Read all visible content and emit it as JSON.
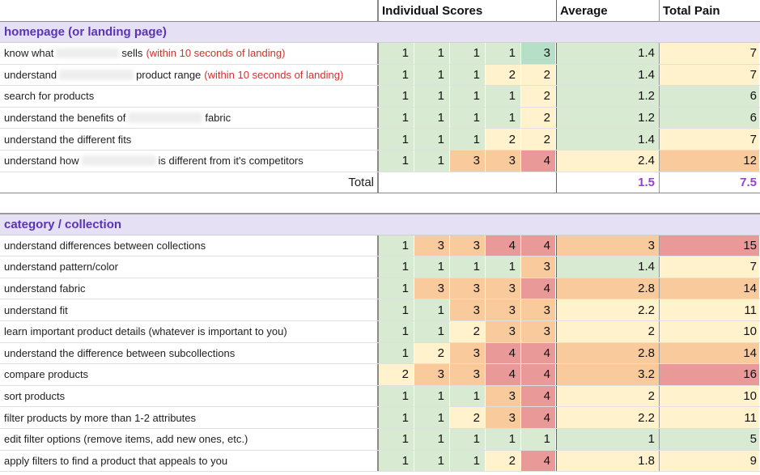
{
  "header": {
    "scores_label": "Individual Scores",
    "average_label": "Average",
    "total_pain_label": "Total Pain"
  },
  "sections": [
    {
      "title": "homepage (or landing page)",
      "rows": [
        {
          "pre": "know what",
          "redacted": true,
          "post": "sells",
          "highlight": "(within 10 seconds of landing)",
          "scores": [
            1,
            1,
            1,
            1,
            3
          ],
          "average": "1.4",
          "total": "7"
        },
        {
          "pre": "understand",
          "redacted": true,
          "post": "product range",
          "highlight": "(within 10 seconds of landing)",
          "scores": [
            1,
            1,
            1,
            2,
            2
          ],
          "average": "1.4",
          "total": "7"
        },
        {
          "pre": "search for products",
          "scores": [
            1,
            1,
            1,
            1,
            2
          ],
          "average": "1.2",
          "total": "6"
        },
        {
          "pre": "understand the benefits of",
          "redacted": true,
          "post": "fabric",
          "scores": [
            1,
            1,
            1,
            1,
            2
          ],
          "average": "1.2",
          "total": "6"
        },
        {
          "pre": "understand the different fits",
          "scores": [
            1,
            1,
            1,
            2,
            2
          ],
          "average": "1.4",
          "total": "7"
        },
        {
          "pre": "understand how",
          "redacted": true,
          "post": "is different from it's competitors",
          "scores": [
            1,
            1,
            3,
            3,
            4
          ],
          "average": "2.4",
          "total": "12"
        }
      ],
      "total": {
        "label": "Total",
        "average": "1.5",
        "total_pain": "7.5"
      }
    },
    {
      "title": "category / collection",
      "rows": [
        {
          "pre": "understand differences between collections",
          "scores": [
            1,
            3,
            3,
            4,
            4
          ],
          "average": "3",
          "total": "15"
        },
        {
          "pre": "understand pattern/color",
          "scores": [
            1,
            1,
            1,
            1,
            3
          ],
          "average": "1.4",
          "total": "7"
        },
        {
          "pre": "understand fabric",
          "scores": [
            1,
            3,
            3,
            3,
            4
          ],
          "average": "2.8",
          "total": "14"
        },
        {
          "pre": "understand fit",
          "scores": [
            1,
            1,
            3,
            3,
            3
          ],
          "average": "2.2",
          "total": "11"
        },
        {
          "pre": "learn important product details (whatever is important to you)",
          "scores": [
            1,
            1,
            2,
            3,
            3
          ],
          "average": "2",
          "total": "10"
        },
        {
          "pre": "understand the difference between subcollections",
          "scores": [
            1,
            2,
            3,
            4,
            4
          ],
          "average": "2.8",
          "total": "14"
        },
        {
          "pre": "compare products",
          "scores": [
            2,
            3,
            3,
            4,
            4
          ],
          "average": "3.2",
          "total": "16"
        },
        {
          "pre": "sort products",
          "scores": [
            1,
            1,
            1,
            3,
            4
          ],
          "average": "2",
          "total": "10"
        },
        {
          "pre": "filter products by more than 1-2 attributes",
          "scores": [
            1,
            1,
            2,
            3,
            4
          ],
          "average": "2.2",
          "total": "11"
        },
        {
          "pre": "edit filter options (remove items, add new ones, etc.)",
          "scores": [
            1,
            1,
            1,
            1,
            1
          ],
          "average": "1",
          "total": "5"
        },
        {
          "pre": "apply filters to find a product that appeals to you",
          "scores": [
            1,
            1,
            1,
            2,
            4
          ],
          "average": "1.8",
          "total": "9"
        }
      ]
    }
  ],
  "colors": {
    "score_1": "#d9ead3",
    "score_2": "#fff2cc",
    "score_3": "#f9cb9c",
    "score_4": "#ea9999",
    "score_3_light_green": "#b6dfc8",
    "section_bg": "#e5e0f4",
    "section_text": "#5b34b6",
    "highlight_text": "#d0342c",
    "total_value": "#9b3fd0"
  }
}
